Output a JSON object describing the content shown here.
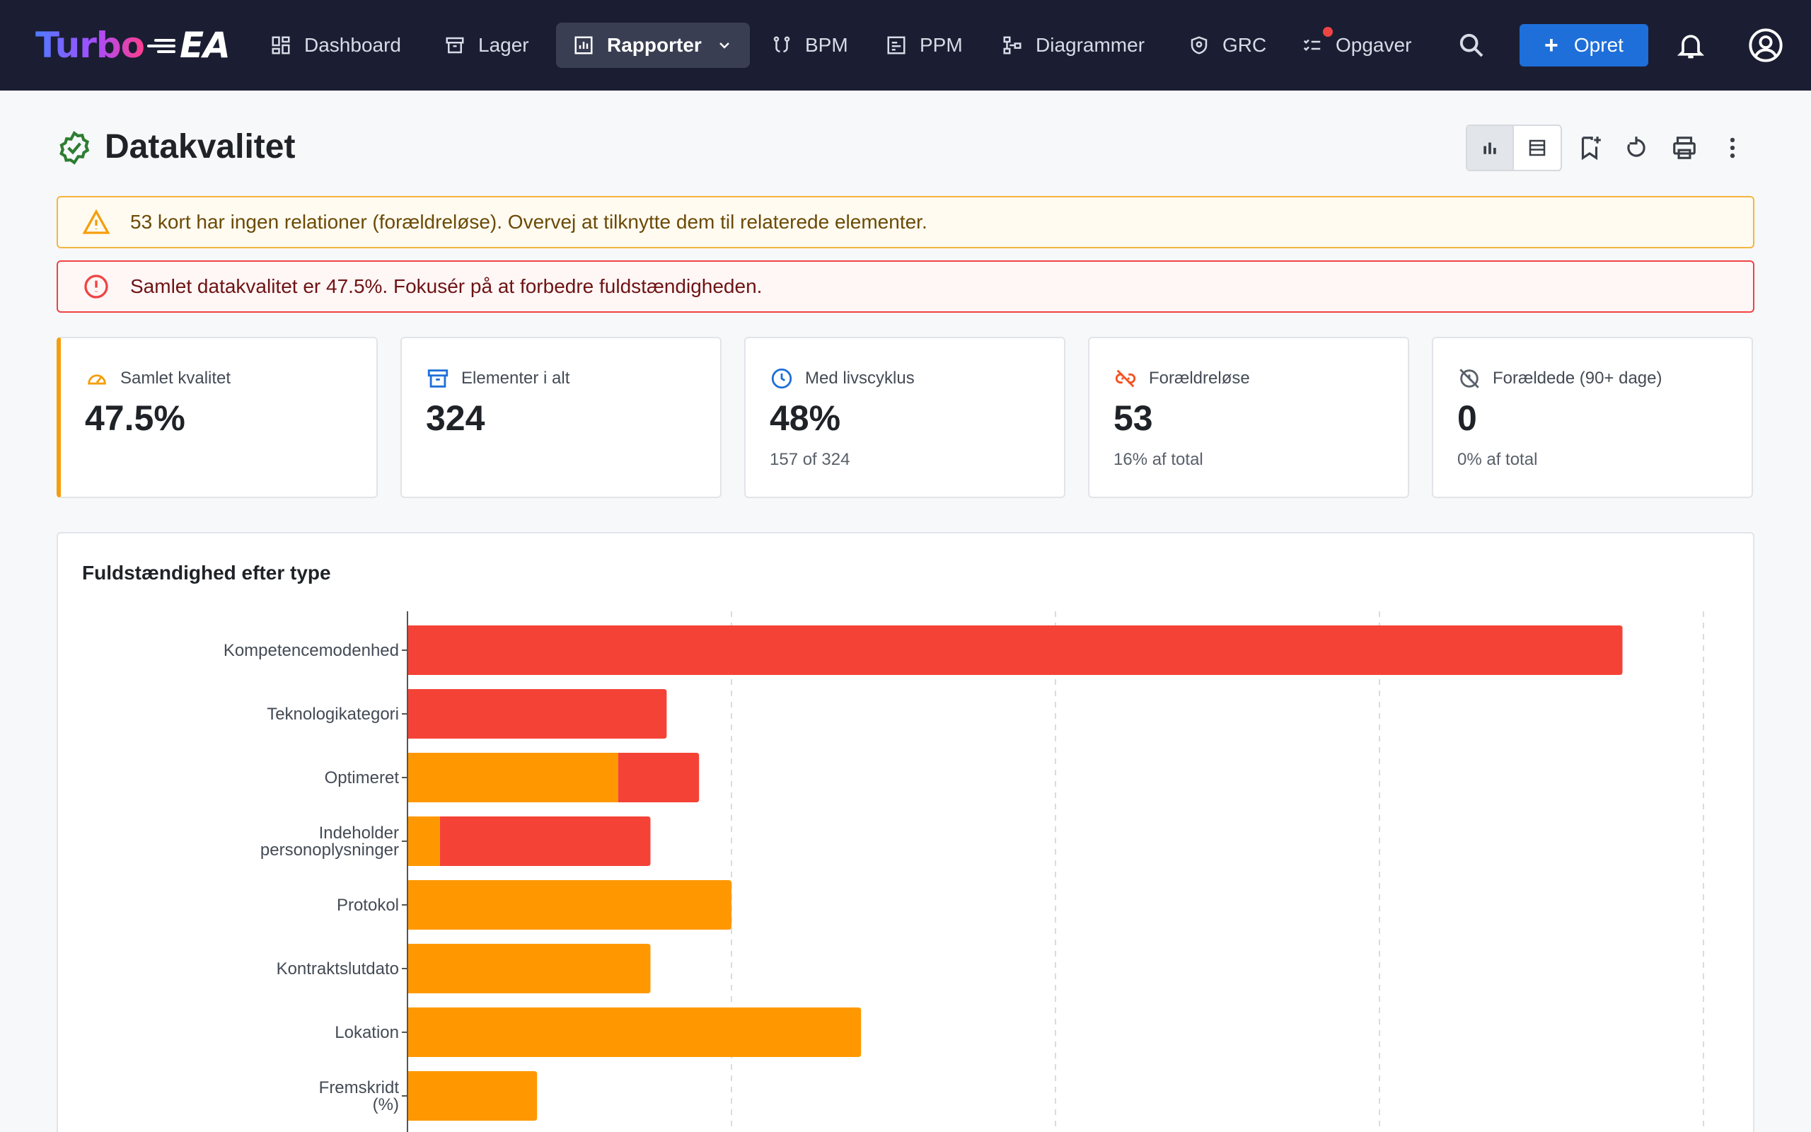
{
  "app": {
    "brand_a": "Turbo",
    "brand_b": "EA",
    "colors": {
      "topbar": "#1b1e33",
      "primary": "#1e6fd9",
      "red": "#f44336",
      "orange": "#ff9800"
    }
  },
  "nav": {
    "items": [
      {
        "label": "Dashboard",
        "icon": "dashboard-icon"
      },
      {
        "label": "Lager",
        "icon": "archive-icon"
      },
      {
        "label": "Rapporter",
        "icon": "report-icon",
        "active": true
      },
      {
        "label": "BPM",
        "icon": "process-icon"
      },
      {
        "label": "PPM",
        "icon": "project-icon"
      },
      {
        "label": "Diagrammer",
        "icon": "diagram-icon"
      },
      {
        "label": "GRC",
        "icon": "shield-icon"
      },
      {
        "label": "Opgaver",
        "icon": "tasks-icon",
        "badge": true
      }
    ],
    "create_label": "Opret"
  },
  "page": {
    "title": "Datakvalitet"
  },
  "alerts": {
    "warning": "53 kort har ingen relationer (forældreløse). Overvej at tilknytte dem til relaterede elementer.",
    "error": "Samlet datakvalitet er 47.5%. Fokusér på at forbedre fuldstændigheden."
  },
  "stats": [
    {
      "label": "Samlet kvalitet",
      "value": "47.5%",
      "sub": "",
      "icon": "gauge-icon"
    },
    {
      "label": "Elementer i alt",
      "value": "324",
      "sub": "",
      "icon": "archive-icon"
    },
    {
      "label": "Med livscyklus",
      "value": "48%",
      "sub": "157 of 324",
      "icon": "clock-icon"
    },
    {
      "label": "Forældreløse",
      "value": "53",
      "sub": "16% af total",
      "icon": "link-off-icon"
    },
    {
      "label": "Forældede (90+ dage)",
      "value": "0",
      "sub": "0% af total",
      "icon": "clock-off-icon"
    }
  ],
  "panel": {
    "title": "Fuldstændighed efter type"
  },
  "chart_data": {
    "type": "bar",
    "orientation": "horizontal",
    "stacked": true,
    "title": "Fuldstændighed efter type",
    "categories": [
      [
        "Kompetencemodenhed"
      ],
      [
        "Teknologikategori"
      ],
      [
        "Optimeret"
      ],
      [
        "Indeholder",
        "personoplysninger"
      ],
      [
        "Protokol"
      ],
      [
        "Kontraktslutdato"
      ],
      [
        "Lokation"
      ],
      [
        "Fremskridt",
        "(%)"
      ]
    ],
    "series": [
      {
        "color": "#ff9800",
        "values": [
          0,
          0,
          13,
          2,
          20,
          15,
          28,
          8
        ]
      },
      {
        "color": "#f44336",
        "values": [
          75,
          16,
          5,
          13,
          0,
          0,
          0,
          0
        ]
      }
    ],
    "xlim": [
      0,
      80
    ],
    "grid": "vertical-dashed"
  }
}
